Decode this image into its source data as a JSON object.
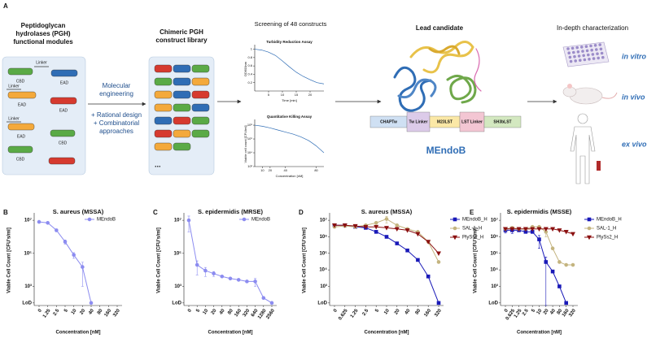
{
  "panel_a": {
    "label": "A",
    "modules_title": [
      "Peptidoglycan",
      "hydrolases (PGH)",
      "functional modules"
    ],
    "module_labels": [
      "CBD",
      "Linker",
      "EAD",
      "Linker",
      "EAD",
      "EAD",
      "Linker",
      "EAD",
      "CBD",
      "CBD"
    ],
    "engineering": [
      "Molecular",
      "engineering",
      "+ Rational design",
      "+ Combinatorial",
      "approaches"
    ],
    "library_title": [
      "Chimeric PGH",
      "construct library"
    ],
    "library_more": "...",
    "screening_title": "Screening of 48 constructs",
    "lead_title": "Lead candidate",
    "domains": [
      "CHAPTw",
      "Tw Linker",
      "M23LST",
      "LST Linker",
      "SH3bLST"
    ],
    "lead_name": "MEndoB",
    "characterization_title": "In-depth characterization",
    "characterization": [
      "in vitro",
      "in vivo",
      "ex vivo"
    ]
  },
  "chart_data": [
    {
      "type": "line",
      "title": "Turbidity Reduction Assay",
      "xlabel": "Time [min]",
      "ylabel": "OD600nm",
      "x": [
        0,
        2.5,
        5,
        7.5,
        10,
        12.5,
        15,
        17.5,
        20,
        22.5,
        25
      ],
      "values": [
        1,
        0.98,
        0.93,
        0.85,
        0.72,
        0.58,
        0.45,
        0.35,
        0.27,
        0.2,
        0.17
      ],
      "color": "#2f6db5",
      "xlim": [
        0,
        25
      ],
      "xticks": [
        5,
        10,
        15,
        20
      ],
      "ylim": [
        0,
        1.05
      ],
      "yticks": [
        0.2,
        0.4,
        0.6,
        0.8,
        1
      ]
    },
    {
      "type": "line",
      "title": "Quantitative Killing Assay",
      "xlabel": "Concentration [nM]",
      "ylabel": "Viable cell count [CFU/ml]",
      "x": [
        0,
        10,
        20,
        30,
        40,
        50,
        60,
        70,
        80,
        90
      ],
      "values": [
        100000000,
        70000000,
        40000000,
        20000000,
        10000000,
        5000000,
        2000000,
        600000,
        100000,
        10000
      ],
      "color": "#2f6db5",
      "log_y": true,
      "xlim": [
        0,
        90
      ],
      "xticks": [
        10,
        20,
        40,
        80
      ],
      "ylim": [
        100,
        300000000
      ],
      "yticks": [
        {
          "value": 100,
          "label": "10²"
        },
        {
          "value": 10000,
          "label": "10⁴"
        },
        {
          "value": 1000000,
          "label": "10⁶"
        },
        {
          "value": 100000000,
          "label": "10⁸"
        }
      ]
    },
    {
      "type": "line",
      "label": "B",
      "title": "S. aureus (MSSA)",
      "xlabel": "Concentration [nM]",
      "ylabel": "Viable Cell Count [CFU's/ml]",
      "categories": [
        "0",
        "1.25",
        "2.5",
        "5",
        "10",
        "20",
        "40",
        "80",
        "160",
        "320"
      ],
      "log_y": true,
      "ylim": [
        70,
        20000000
      ],
      "legend": "upper right",
      "yticks": [
        {
          "value": 100,
          "label": "LoD"
        },
        {
          "value": 1000,
          "label": "10³"
        },
        {
          "value": 100000,
          "label": "10⁵"
        },
        {
          "value": 10000000,
          "label": "10⁷"
        }
      ],
      "series": [
        {
          "name": "MEndoB",
          "color": "#8c8cf0",
          "marker": "circle",
          "values": [
            8000000,
            7000000,
            2500000,
            500000,
            80000,
            15000,
            100,
            null,
            null,
            null
          ],
          "errors": [
            null,
            null,
            500000,
            150000,
            30000,
            14000,
            null,
            null,
            null,
            null
          ]
        }
      ]
    },
    {
      "type": "line",
      "label": "C",
      "title": "S. epidermidis (MRSE)",
      "xlabel": "Concentration [nM]",
      "ylabel": "Viable Cell Count [CFU's/ml]",
      "categories": [
        "0",
        "5",
        "10",
        "20",
        "40",
        "80",
        "160",
        "320",
        "640",
        "1280",
        "2560"
      ],
      "log_y": true,
      "ylim": [
        70,
        20000000
      ],
      "legend": "upper right",
      "yticks": [
        {
          "value": 100,
          "label": "LoD"
        },
        {
          "value": 1000,
          "label": "10³"
        },
        {
          "value": 100000,
          "label": "10⁵"
        },
        {
          "value": 10000000,
          "label": "10⁷"
        }
      ],
      "series": [
        {
          "name": "MEndoB",
          "color": "#8c8cf0",
          "marker": "circle",
          "values": [
            10000000,
            20000,
            9000,
            6000,
            4000,
            3000,
            2500,
            2000,
            2000,
            200,
            100
          ],
          "errors": [
            8000000,
            15000,
            5000,
            2000,
            null,
            null,
            null,
            null,
            1000,
            null,
            null
          ]
        }
      ]
    },
    {
      "type": "line",
      "label": "D",
      "title": "S. aureus (MSSA)",
      "xlabel": "Concentration [nM]",
      "ylabel": "Viable Cell Count [CFU's/ml]",
      "categories": [
        "0",
        "0.625",
        "1.25",
        "2.5",
        "5",
        "10",
        "20",
        "40",
        "80",
        "160",
        "320"
      ],
      "log_y": true,
      "ylim": [
        70,
        20000000
      ],
      "legend": "outside right",
      "yticks": [
        {
          "value": 100,
          "label": "LoD"
        },
        {
          "value": 1000,
          "label": "10³"
        },
        {
          "value": 10000,
          "label": "10⁴"
        },
        {
          "value": 100000,
          "label": "10⁵"
        },
        {
          "value": 1000000,
          "label": "10⁶"
        },
        {
          "value": 10000000,
          "label": "10⁷"
        }
      ],
      "series": [
        {
          "name": "MEndoB_H",
          "color": "#1a1ab8",
          "marker": "square",
          "values": [
            5000000,
            5000000,
            4000000,
            3500000,
            2000000,
            1000000,
            400000,
            150000,
            40000,
            4000,
            100
          ],
          "errors": [
            null,
            null,
            null,
            null,
            null,
            null,
            null,
            null,
            null,
            null,
            null
          ]
        },
        {
          "name": "SAL-1_H",
          "color": "#c4b47f",
          "marker": "circle",
          "values": [
            4000000,
            4500000,
            4000000,
            5000000,
            7000000,
            12000000,
            5000000,
            3000000,
            2000000,
            500000,
            30000
          ],
          "errors": [
            null,
            null,
            null,
            null,
            null,
            5000000,
            null,
            null,
            null,
            null,
            null
          ]
        },
        {
          "name": "PlySs2_H",
          "color": "#8b1010",
          "marker": "triangle",
          "values": [
            5000000,
            5000000,
            4500000,
            4000000,
            4000000,
            3500000,
            3000000,
            2500000,
            1500000,
            500000,
            100000
          ],
          "errors": [
            null,
            null,
            null,
            null,
            null,
            null,
            null,
            null,
            null,
            null,
            null
          ]
        }
      ]
    },
    {
      "type": "line",
      "label": "E",
      "title": "S. epidermidis (MSSE)",
      "xlabel": "Concentration [nM]",
      "ylabel": "Viable Cell Count [CFU's/ml]",
      "categories": [
        "0",
        "0.625",
        "1.25",
        "2.5",
        "5",
        "10",
        "20",
        "40",
        "80",
        "160",
        "320"
      ],
      "log_y": true,
      "ylim": [
        70,
        20000000
      ],
      "legend": "outside right",
      "yticks": [
        {
          "value": 100,
          "label": "LoD"
        },
        {
          "value": 1000,
          "label": "10³"
        },
        {
          "value": 10000,
          "label": "10⁴"
        },
        {
          "value": 100000,
          "label": "10⁵"
        },
        {
          "value": 1000000,
          "label": "10⁶"
        },
        {
          "value": 10000000,
          "label": "10⁷"
        }
      ],
      "series": [
        {
          "name": "MEndoB_H",
          "color": "#1a1ab8",
          "marker": "square",
          "values": [
            2500000,
            2500000,
            2500000,
            2000000,
            2000000,
            700000,
            30000,
            8000,
            1000,
            100,
            null
          ],
          "errors": [
            800000,
            900000,
            null,
            null,
            null,
            500000,
            30000,
            null,
            null,
            null,
            null
          ]
        },
        {
          "name": "SAL-1_H",
          "color": "#c4b47f",
          "marker": "circle",
          "values": [
            3000000,
            3500000,
            3000000,
            3000000,
            4000000,
            4000000,
            2000000,
            200000,
            30000,
            20000,
            20000
          ],
          "errors": [
            null,
            null,
            null,
            null,
            null,
            null,
            1000000,
            null,
            null,
            null,
            null
          ]
        },
        {
          "name": "PlySs2_H",
          "color": "#8b1010",
          "marker": "triangle",
          "values": [
            3000000,
            3000000,
            3000000,
            3000000,
            3000000,
            3000000,
            3000000,
            3000000,
            2500000,
            2000000,
            1500000
          ],
          "errors": [
            null,
            null,
            null,
            null,
            null,
            null,
            null,
            null,
            null,
            null,
            null
          ]
        }
      ]
    }
  ]
}
